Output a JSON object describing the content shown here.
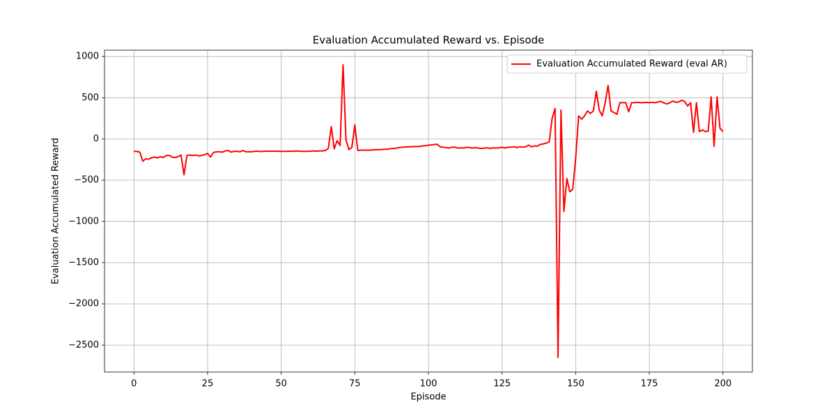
{
  "chart_data": {
    "type": "line",
    "title": "Evaluation Accumulated Reward vs. Episode",
    "x_label": "Episode",
    "y_label": "Evaluation Accumulated Reward",
    "x": [
      0,
      1,
      2,
      3,
      4,
      5,
      6,
      7,
      8,
      9,
      10,
      11,
      12,
      13,
      14,
      15,
      16,
      17,
      18,
      19,
      20,
      21,
      22,
      23,
      24,
      25,
      26,
      27,
      28,
      29,
      30,
      31,
      32,
      33,
      34,
      35,
      36,
      37,
      38,
      39,
      40,
      41,
      42,
      43,
      44,
      45,
      46,
      47,
      48,
      49,
      50,
      51,
      52,
      53,
      54,
      55,
      56,
      57,
      58,
      59,
      60,
      61,
      62,
      63,
      64,
      65,
      66,
      67,
      68,
      69,
      70,
      71,
      72,
      73,
      74,
      75,
      76,
      77,
      78,
      79,
      80,
      81,
      82,
      83,
      84,
      85,
      86,
      87,
      88,
      89,
      90,
      91,
      92,
      93,
      94,
      95,
      96,
      97,
      98,
      99,
      100,
      101,
      102,
      103,
      104,
      105,
      106,
      107,
      108,
      109,
      110,
      111,
      112,
      113,
      114,
      115,
      116,
      117,
      118,
      119,
      120,
      121,
      122,
      123,
      124,
      125,
      126,
      127,
      128,
      129,
      130,
      131,
      132,
      133,
      134,
      135,
      136,
      137,
      138,
      139,
      140,
      141,
      142,
      143,
      144,
      145,
      146,
      147,
      148,
      149,
      150,
      151,
      152,
      153,
      154,
      155,
      156,
      157,
      158,
      159,
      160,
      161,
      162,
      163,
      164,
      165,
      166,
      167,
      168,
      169,
      170,
      171,
      172,
      173,
      174,
      175,
      176,
      177,
      178,
      179,
      180,
      181,
      182,
      183,
      184,
      185,
      186,
      187,
      188,
      189,
      190,
      191,
      192,
      193,
      194,
      195,
      196,
      197,
      198,
      199,
      200
    ],
    "series": [
      {
        "name": "Evaluation Accumulated Reward (eval AR)",
        "color": "#ff0000",
        "values": [
          -150,
          -150,
          -160,
          -270,
          -240,
          -245,
          -225,
          -220,
          -230,
          -215,
          -225,
          -200,
          -200,
          -220,
          -225,
          -215,
          -195,
          -435,
          -200,
          -195,
          -200,
          -195,
          -205,
          -200,
          -190,
          -175,
          -220,
          -165,
          -155,
          -155,
          -160,
          -145,
          -140,
          -160,
          -150,
          -150,
          -155,
          -140,
          -155,
          -155,
          -155,
          -150,
          -148,
          -152,
          -150,
          -148,
          -148,
          -148,
          -148,
          -149,
          -150,
          -150,
          -150,
          -148,
          -150,
          -145,
          -148,
          -150,
          -150,
          -150,
          -148,
          -145,
          -148,
          -145,
          -145,
          -140,
          -115,
          150,
          -120,
          -20,
          -80,
          900,
          -10,
          -130,
          -100,
          170,
          -140,
          -135,
          -135,
          -135,
          -135,
          -133,
          -130,
          -130,
          -128,
          -125,
          -125,
          -118,
          -115,
          -112,
          -105,
          -100,
          -98,
          -95,
          -95,
          -92,
          -92,
          -90,
          -85,
          -82,
          -75,
          -72,
          -68,
          -65,
          -95,
          -100,
          -105,
          -110,
          -100,
          -100,
          -110,
          -108,
          -110,
          -100,
          -105,
          -110,
          -105,
          -112,
          -115,
          -110,
          -108,
          -115,
          -108,
          -110,
          -108,
          -100,
          -110,
          -100,
          -100,
          -95,
          -105,
          -95,
          -100,
          -95,
          -75,
          -95,
          -85,
          -88,
          -65,
          -60,
          -50,
          -35,
          250,
          370,
          -2650,
          350,
          -880,
          -480,
          -640,
          -610,
          -230,
          280,
          240,
          280,
          340,
          310,
          340,
          580,
          350,
          280,
          440,
          650,
          340,
          320,
          300,
          440,
          440,
          440,
          330,
          440,
          440,
          445,
          440,
          440,
          445,
          440,
          445,
          440,
          450,
          455,
          435,
          425,
          440,
          460,
          445,
          450,
          470,
          455,
          400,
          440,
          80,
          440,
          90,
          110,
          90,
          95,
          510,
          -90,
          510,
          130,
          90
        ]
      }
    ],
    "xlim": [
      -10,
      210
    ],
    "xticks": [
      0,
      25,
      50,
      75,
      100,
      125,
      150,
      175,
      200
    ],
    "ylim": [
      -2827.5,
      1077.5
    ],
    "yticks": [
      {
        "value": -2500,
        "label": "−2500"
      },
      {
        "value": -2000,
        "label": "−2000"
      },
      {
        "value": -1500,
        "label": "−1500"
      },
      {
        "value": -1000,
        "label": "−1000"
      },
      {
        "value": -500,
        "label": "−500"
      },
      0,
      500,
      1000
    ],
    "grid": true,
    "legend": "upper-right"
  }
}
